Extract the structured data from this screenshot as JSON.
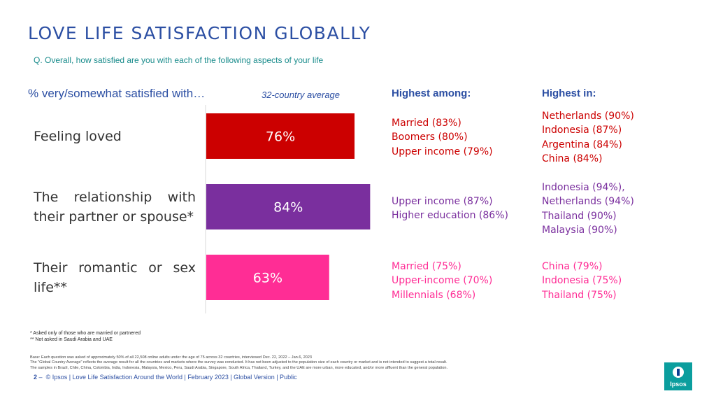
{
  "title": "LOVE LIFE SATISFACTION GLOBALLY",
  "question": "Q. Overall, how satisfied are you with each of the following aspects of your life",
  "headers": {
    "satisfied": "% very/somewhat satisfied with…",
    "average": "32-country average",
    "highest_among": "Highest among:",
    "highest_in": "Highest in:"
  },
  "rows": [
    {
      "label": "Feeling loved",
      "among": [
        "Married (83%)",
        "Boomers (80%)",
        "Upper income (79%)"
      ],
      "in": [
        "Netherlands (90%)",
        "Indonesia (87%)",
        "Argentina (84%)",
        "China (84%)"
      ]
    },
    {
      "label": "The relationship with their partner or spouse*",
      "among": [
        "Upper income (87%)",
        "Higher education (86%)"
      ],
      "in": [
        "Indonesia (94%),",
        "Netherlands (94%)",
        "Thailand (90%)",
        "Malaysia (90%)"
      ]
    },
    {
      "label": "Their romantic or sex life**",
      "among": [
        "Married (75%)",
        "Upper-income (70%)",
        "Millennials (68%)"
      ],
      "in": [
        "China (79%)",
        "Indonesia (75%)",
        "Thailand (75%)"
      ]
    }
  ],
  "chart_data": {
    "type": "bar",
    "orientation": "horizontal",
    "title": "% very/somewhat satisfied with…",
    "series_name": "32-country average",
    "categories": [
      "Feeling loved",
      "The relationship with their partner or spouse*",
      "Their romantic or sex life**"
    ],
    "values": [
      76,
      84,
      63
    ],
    "value_labels": [
      "76%",
      "84%",
      "63%"
    ],
    "colors": [
      "#cc0000",
      "#7a2f9e",
      "#ff2d95"
    ],
    "xlim": [
      0,
      100
    ],
    "grid": false
  },
  "notes": [
    "* Asked only of those who are married or partnered",
    "** Not asked in Saudi Arabia and UAE"
  ],
  "base_text": [
    "Base: Each question was asked of approximately 50% of all 22,508 online adults under the age of 75 across 32 countries, interviewed Dec. 22, 2022 – Jan.6, 2023",
    "The \"Global Country Average\" reflects the average result for all the countries and markets where the survey was conducted. It has not been adjusted to the population size of each country or market and is not intended to suggest a total result.",
    "The samples in Brazil, Chile, China, Colombia, India, Indonesia, Malaysia, Mexico, Peru, Saudi Arabia, Singapore, South Africa, Thailand, Turkey, and the UAE are more urban, more educated, and/or more affluent than the general population."
  ],
  "footer": {
    "page": "2",
    "dash": "–",
    "text": "© Ipsos | Love Life Satisfaction Around the World | February 2023 | Global Version | Public"
  },
  "logo_text": "Ipsos"
}
